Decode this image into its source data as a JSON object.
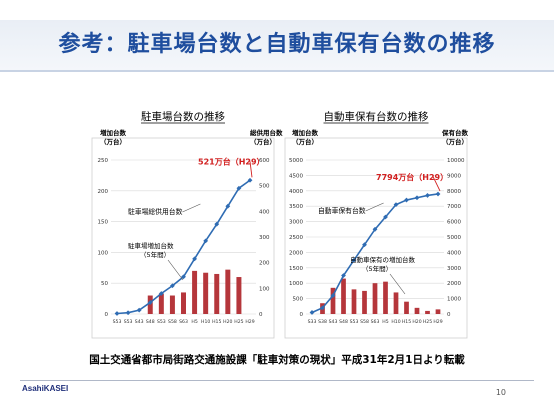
{
  "page": {
    "title": "参考：駐車場台数と自動車保有台数の推移",
    "source_note": "国土交通省都市局街路交通施設課「駐車対策の現状」平成31年2月1日より転載",
    "logo": "AsahiKASEI",
    "page_number": "10"
  },
  "colors": {
    "title": "#1f4e9e",
    "bar": "#b5363b",
    "line": "#2f6cb3",
    "callout": "#d22020",
    "grid": "#d8d8d8"
  },
  "chart_data": [
    {
      "type": "bar",
      "title": "駐車場台数の推移",
      "left_axis_label": [
        "増加台数",
        "（万台）"
      ],
      "right_axis_label": [
        "総供用台数",
        "（万台）"
      ],
      "left_ylim": [
        0,
        250
      ],
      "left_ticks": [
        "0",
        "50",
        "100",
        "150",
        "200",
        "250"
      ],
      "right_ylim": [
        0,
        600
      ],
      "right_ticks": [
        "0",
        "100",
        "200",
        "300",
        "400",
        "500",
        "600"
      ],
      "x_tick_labels": [
        "S53",
        "S53",
        "S43",
        "S48",
        "S53",
        "S58",
        "S63",
        "H5",
        "H10",
        "H15",
        "H20",
        "H25",
        "H29"
      ],
      "bars": [
        {
          "x": 3,
          "value": 30
        },
        {
          "x": 4,
          "value": 33
        },
        {
          "x": 5,
          "value": 30
        },
        {
          "x": 6,
          "value": 35
        },
        {
          "x": 7,
          "value": 70
        },
        {
          "x": 8,
          "value": 67
        },
        {
          "x": 9,
          "value": 65
        },
        {
          "x": 10,
          "value": 72
        },
        {
          "x": 11,
          "value": 60
        }
      ],
      "line": [
        {
          "x": 0,
          "value": 2
        },
        {
          "x": 1,
          "value": 5
        },
        {
          "x": 2,
          "value": 15
        },
        {
          "x": 3,
          "value": 45
        },
        {
          "x": 4,
          "value": 80
        },
        {
          "x": 5,
          "value": 110
        },
        {
          "x": 6,
          "value": 145
        },
        {
          "x": 7,
          "value": 215
        },
        {
          "x": 8,
          "value": 285
        },
        {
          "x": 9,
          "value": 350
        },
        {
          "x": 10,
          "value": 420
        },
        {
          "x": 11,
          "value": 490
        },
        {
          "x": 12,
          "value": 521
        }
      ],
      "callout": "521万台（H29）",
      "line_label": "駐車場総供用台数",
      "bar_label": [
        "駐車場増加台数",
        "（5年間）"
      ]
    },
    {
      "type": "bar",
      "title": "自動車保有台数の推移",
      "left_axis_label": [
        "増加台数",
        "（万台）"
      ],
      "right_axis_label": [
        "保有台数",
        "（万台）"
      ],
      "left_ylim": [
        0,
        5000
      ],
      "left_ticks": [
        "0",
        "500",
        "1000",
        "1500",
        "2000",
        "2500",
        "3000",
        "3500",
        "4000",
        "4500",
        "5000"
      ],
      "right_ylim": [
        0,
        10000
      ],
      "right_ticks": [
        "0",
        "1000",
        "2000",
        "3000",
        "4000",
        "5000",
        "6000",
        "7000",
        "8000",
        "9000",
        "10000"
      ],
      "x_tick_labels": [
        "S33",
        "S38",
        "S43",
        "S48",
        "S53",
        "S58",
        "S63",
        "H5",
        "H10",
        "H15",
        "H20",
        "H25",
        "H29"
      ],
      "bars": [
        {
          "x": 1,
          "value": 350
        },
        {
          "x": 2,
          "value": 850
        },
        {
          "x": 3,
          "value": 1150
        },
        {
          "x": 4,
          "value": 800
        },
        {
          "x": 5,
          "value": 750
        },
        {
          "x": 6,
          "value": 1000
        },
        {
          "x": 7,
          "value": 1050
        },
        {
          "x": 8,
          "value": 700
        },
        {
          "x": 9,
          "value": 400
        },
        {
          "x": 10,
          "value": 200
        },
        {
          "x": 11,
          "value": 100
        },
        {
          "x": 12,
          "value": 150
        }
      ],
      "line": [
        {
          "x": 0,
          "value": 100
        },
        {
          "x": 1,
          "value": 400
        },
        {
          "x": 2,
          "value": 1200
        },
        {
          "x": 3,
          "value": 2500
        },
        {
          "x": 4,
          "value": 3500
        },
        {
          "x": 5,
          "value": 4500
        },
        {
          "x": 6,
          "value": 5500
        },
        {
          "x": 7,
          "value": 6300
        },
        {
          "x": 8,
          "value": 7100
        },
        {
          "x": 9,
          "value": 7400
        },
        {
          "x": 10,
          "value": 7550
        },
        {
          "x": 11,
          "value": 7700
        },
        {
          "x": 12,
          "value": 7794
        }
      ],
      "callout": "7794万台（H29）",
      "line_label": "自動車保有台数",
      "bar_label": [
        "自動車保有の増加台数",
        "（5年間）"
      ]
    }
  ]
}
